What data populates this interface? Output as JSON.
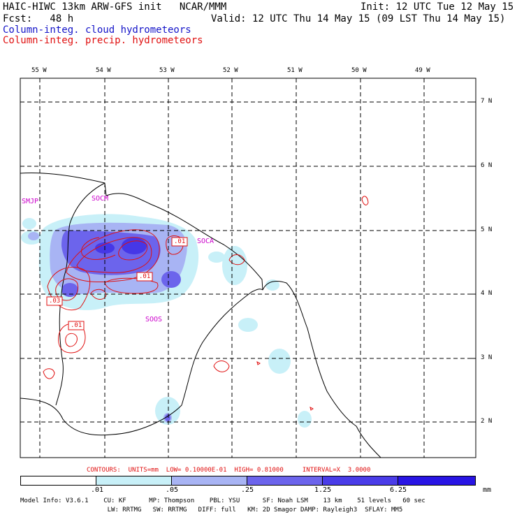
{
  "header": {
    "line1_left": "HAIC-HIWC 13km ARW-GFS init   NCAR/MMM",
    "line1_right": "Init: 12 UTC Tue 12 May 15",
    "line2_left": "Fcst:   48 h",
    "line2_right": "Valid: 12 UTC Thu 14 May 15 (09 LST Thu 14 May 15)",
    "legend_cloud": "Column-integ. cloud hydrometeors",
    "legend_precip": "Column-integ. precip. hydrometeors"
  },
  "map": {
    "lon_labels": [
      "55 W",
      "54 W",
      "53 W",
      "52 W",
      "51 W",
      "50 W",
      "49 W"
    ],
    "lat_labels": [
      "7 N",
      "6 N",
      "5 N",
      "4 N",
      "3 N",
      "2 N"
    ],
    "stations": [
      "SMJP",
      "SOCM",
      "SOCA",
      "SOOS"
    ],
    "contour_labels": [
      ".01",
      ".01",
      ".03",
      ".01"
    ]
  },
  "contours_info": "CONTOURS:  UNITS=mm  LOW= 0.10000E-01  HIGH= 0.81000     INTERVAL=X  3.0000",
  "colorbar": {
    "levels": [
      ".01",
      ".05",
      ".25",
      "1.25",
      "6.25"
    ],
    "unit": "mm",
    "colors": [
      "#ffffff",
      "#c8f0f8",
      "#a8b4f4",
      "#6c64ec",
      "#2814e4"
    ]
  },
  "model_info": {
    "line1": "Model Info: V3.6.1    CU: KF      MP: Thompson    PBL: YSU      SF: Noah LSM    13 km    51 levels   60 sec",
    "line2": "                       LW: RRTMG   SW: RRTMG   DIFF: full   KM: 2D Smagor DAMP: Rayleigh3  SFLAY: MM5"
  }
}
